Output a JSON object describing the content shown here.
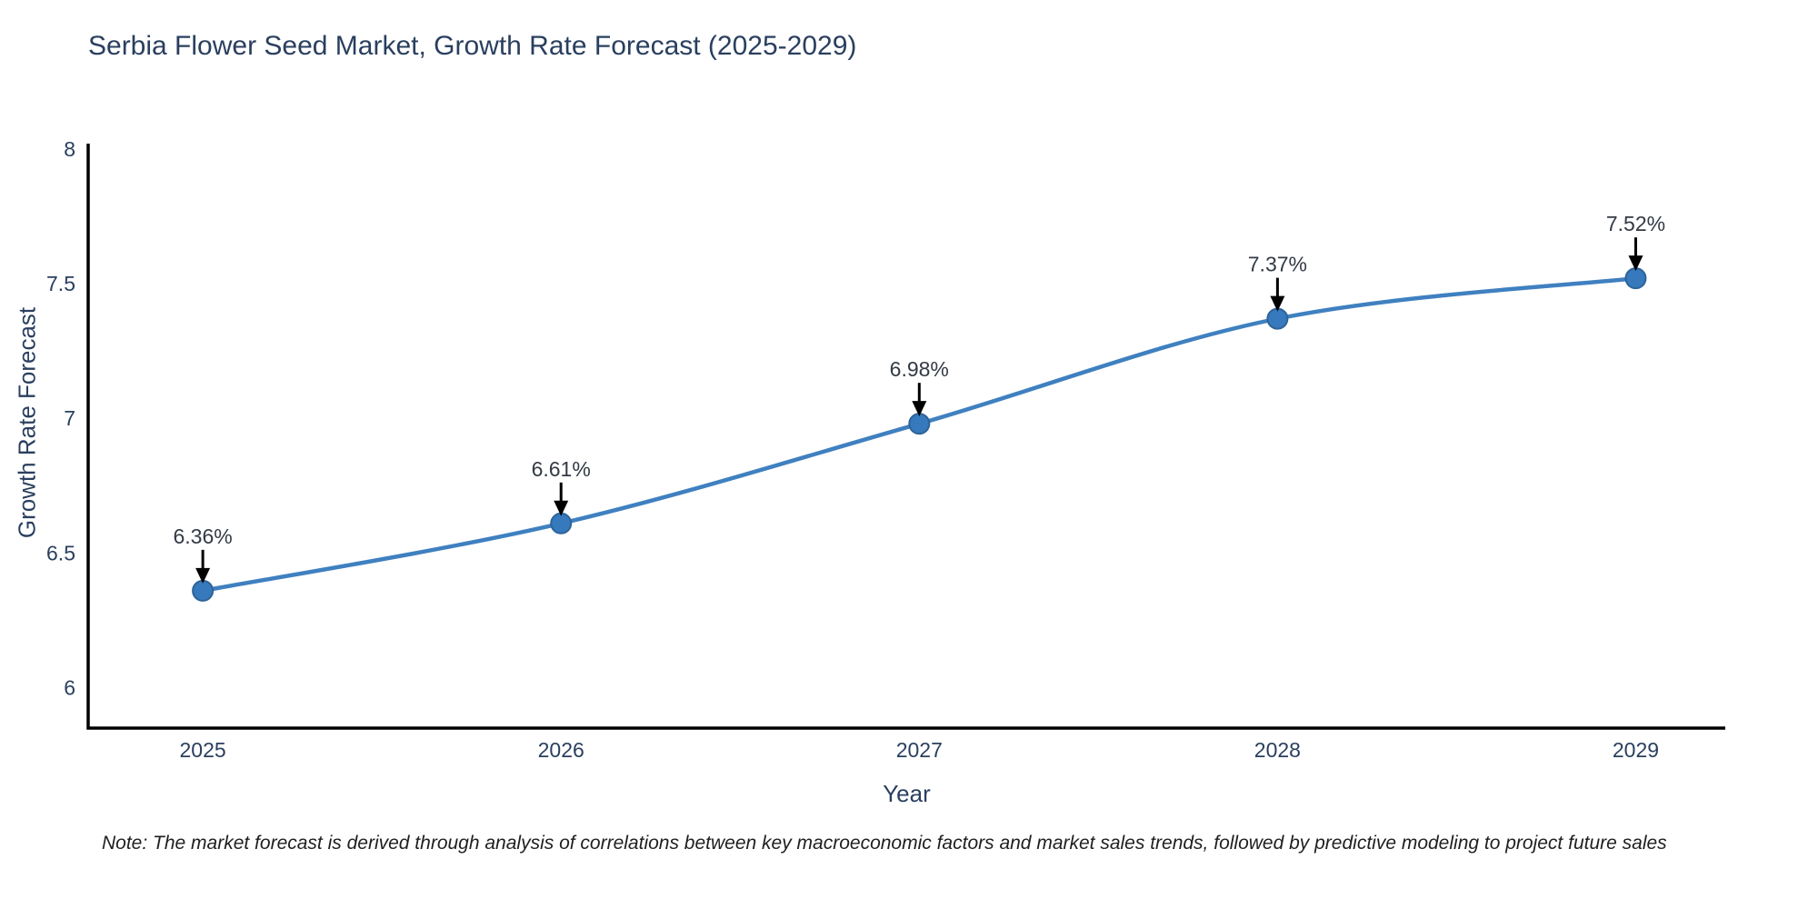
{
  "note": "Note: The market forecast is derived through analysis of correlations between key macroeconomic factors and market sales trends, followed by predictive modeling to project future sales",
  "chart_data": {
    "type": "line",
    "title": "Serbia Flower Seed Market, Growth Rate Forecast (2025-2029)",
    "xlabel": "Year",
    "ylabel": "Growth Rate Forecast",
    "x": [
      2025,
      2026,
      2027,
      2028,
      2029
    ],
    "categories": [
      "2025",
      "2026",
      "2027",
      "2028",
      "2029"
    ],
    "values": [
      6.36,
      6.61,
      6.98,
      7.37,
      7.52
    ],
    "labels": [
      "6.36%",
      "6.61%",
      "6.98%",
      "7.37%",
      "7.52%"
    ],
    "yticks": [
      6,
      6.5,
      7,
      7.5,
      8
    ],
    "ytick_labels": [
      "6",
      "6.5",
      "7",
      "7.5",
      "8"
    ],
    "xlim": [
      2024.68,
      2029.25
    ],
    "ylim": [
      5.85,
      8.02
    ],
    "grid": false,
    "legend": "none",
    "line_color": "#3f80c0",
    "marker_color": "#3679bc",
    "marker_edge_color": "#2d6399",
    "axis_color": "#000000",
    "text_color": "#2a3f5f",
    "annotation_color": "#333a45",
    "annotation_arrow_color": "#000000"
  }
}
